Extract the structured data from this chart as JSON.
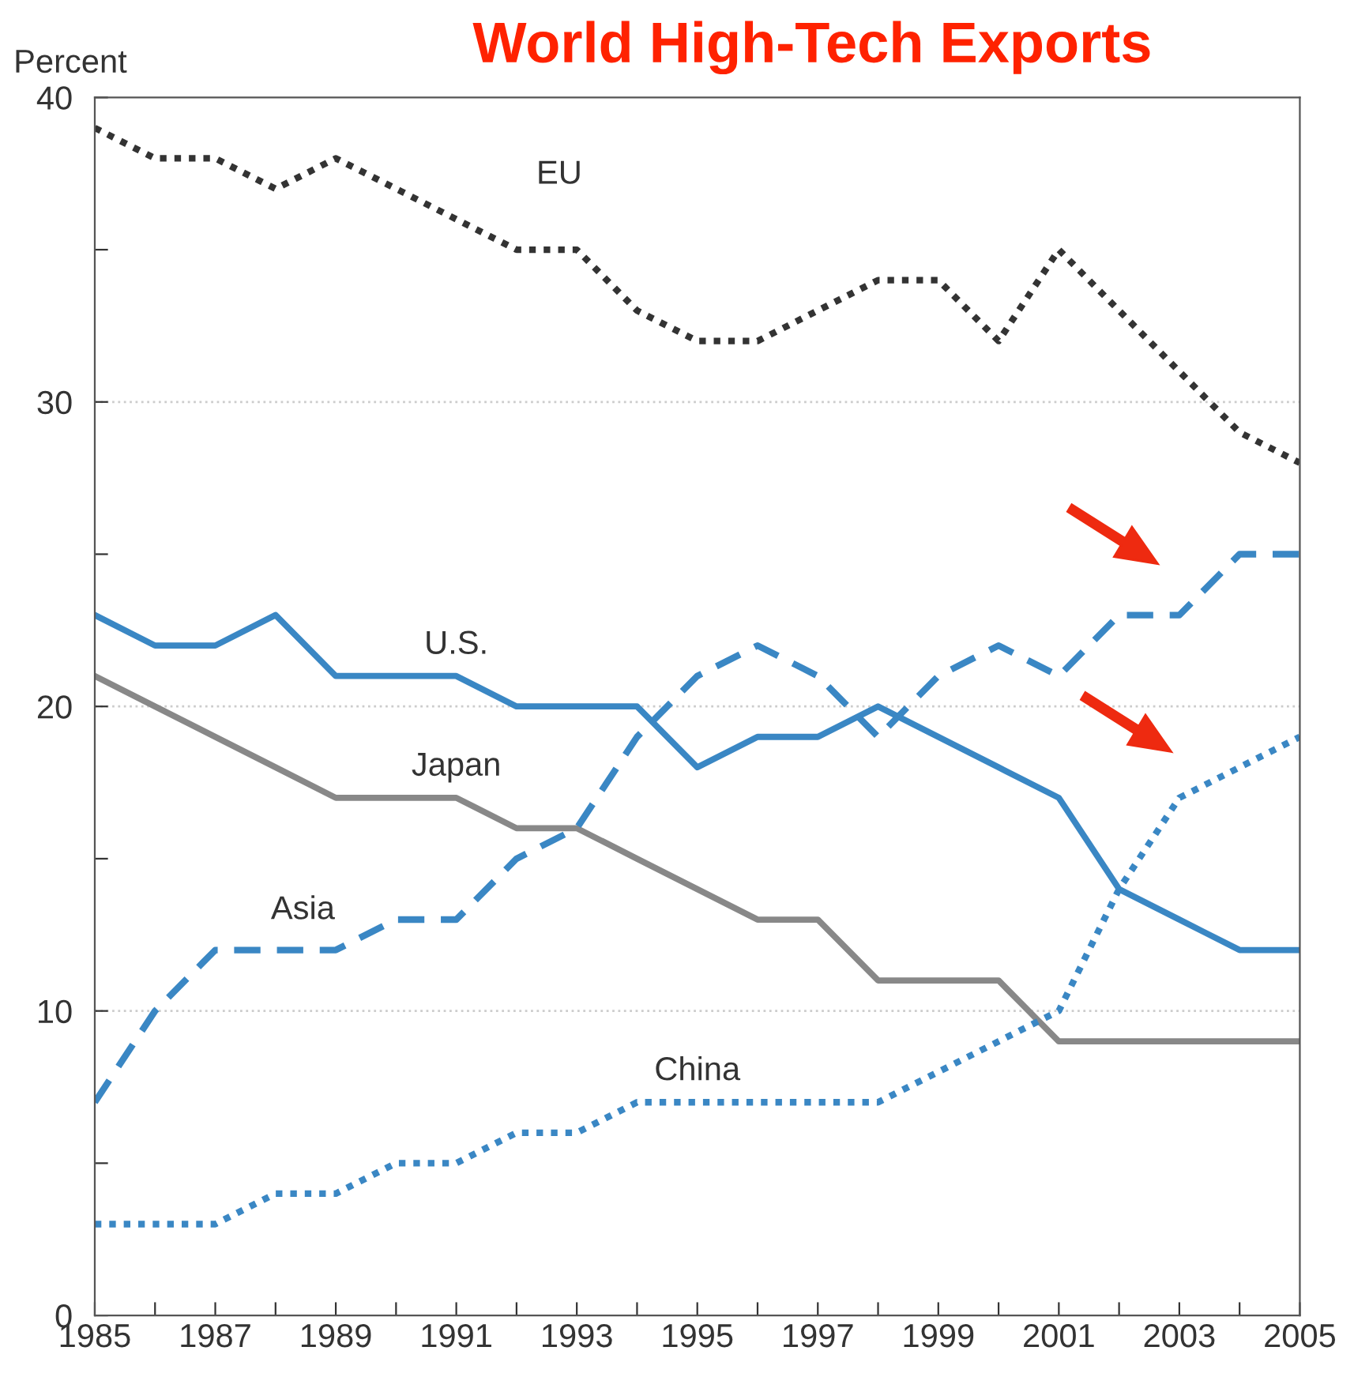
{
  "chart_data": {
    "type": "line",
    "title": "World High-Tech Exports",
    "ylabel": "Percent",
    "x": [
      1985,
      1986,
      1987,
      1988,
      1989,
      1990,
      1991,
      1992,
      1993,
      1994,
      1995,
      1996,
      1997,
      1998,
      1999,
      2000,
      2001,
      2002,
      2003,
      2004,
      2005
    ],
    "series": [
      {
        "name": "EU",
        "color": "#333333",
        "line_style": "dotted",
        "values": [
          39,
          38,
          38,
          37,
          38,
          37,
          36,
          35,
          35,
          33,
          32,
          32,
          33,
          34,
          34,
          32,
          35,
          33,
          31,
          29,
          28
        ]
      },
      {
        "name": "U.S.",
        "color": "#3a87c4",
        "line_style": "solid",
        "values": [
          23,
          22,
          22,
          23,
          21,
          21,
          21,
          20,
          20,
          20,
          18,
          19,
          19,
          20,
          19,
          18,
          17,
          14,
          13,
          12,
          12
        ]
      },
      {
        "name": "Japan",
        "color": "#888888",
        "line_style": "solid",
        "values": [
          21,
          20,
          19,
          18,
          17,
          17,
          17,
          16,
          16,
          15,
          14,
          13,
          13,
          11,
          11,
          11,
          9,
          9,
          9,
          9,
          9
        ]
      },
      {
        "name": "Asia",
        "color": "#3a87c4",
        "line_style": "dashed",
        "values": [
          7,
          10,
          12,
          12,
          12,
          13,
          13,
          15,
          16,
          19,
          21,
          22,
          21,
          19,
          21,
          22,
          21,
          23,
          23,
          25,
          25
        ]
      },
      {
        "name": "China",
        "color": "#3a87c4",
        "line_style": "dotted",
        "values": [
          3,
          3,
          3,
          4,
          4,
          5,
          5,
          6,
          6,
          7,
          7,
          7,
          7,
          7,
          8,
          9,
          10,
          14,
          17,
          18,
          19
        ]
      }
    ],
    "xlim": [
      1985,
      2005
    ],
    "ylim": [
      0,
      40
    ],
    "xticks": [
      1985,
      {
        "value": 1986,
        "label": null
      },
      1987,
      {
        "value": 1988,
        "label": null
      },
      1989,
      {
        "value": 1990,
        "label": null
      },
      1991,
      {
        "value": 1992,
        "label": null
      },
      1993,
      {
        "value": 1994,
        "label": null
      },
      1995,
      {
        "value": 1996,
        "label": null
      },
      1997,
      {
        "value": 1998,
        "label": null
      },
      1999,
      {
        "value": 2000,
        "label": null
      },
      2001,
      {
        "value": 2002,
        "label": null
      },
      2003,
      {
        "value": 2004,
        "label": null
      },
      2005
    ],
    "yticks": [
      0,
      {
        "value": 5,
        "label": null
      },
      10,
      {
        "value": 15,
        "label": null
      },
      20,
      {
        "value": 25,
        "label": null
      },
      30,
      {
        "value": 35,
        "label": null
      },
      40
    ],
    "grid": "y",
    "legend": false
  }
}
